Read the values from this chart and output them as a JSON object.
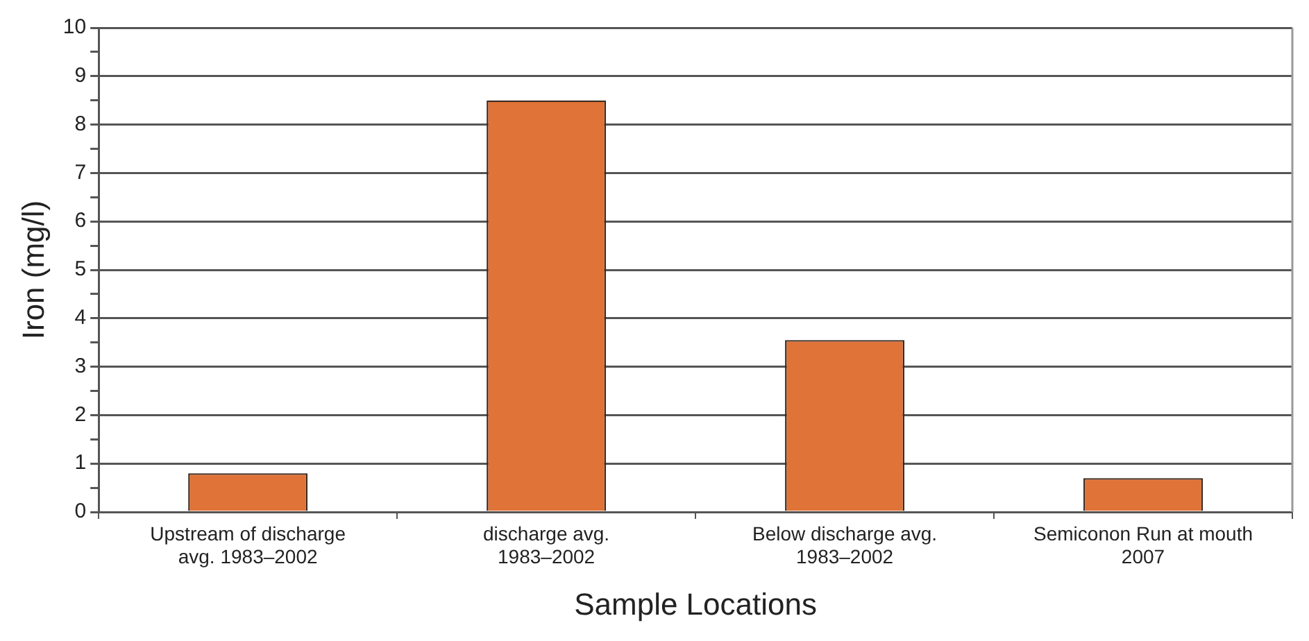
{
  "chart_data": {
    "type": "bar",
    "xlabel": "Sample Locations",
    "ylabel": "Iron (mg/l)",
    "categories": [
      "Upstream of discharge\navg. 1983–2002",
      "discharge avg.\n1983–2002",
      "Below discharge avg.\n1983–2002",
      "Semiconon Run at mouth\n2007"
    ],
    "values": [
      0.8,
      8.5,
      3.55,
      0.7
    ],
    "color": "#e07338",
    "ylim": [
      0,
      10
    ],
    "yticks": [
      0,
      {
        "value": 0.5,
        "label": null
      },
      1,
      {
        "value": 1.5,
        "label": null
      },
      2,
      {
        "value": 2.5,
        "label": null
      },
      3,
      {
        "value": 3.5,
        "label": null
      },
      4,
      {
        "value": 4.5,
        "label": null
      },
      5,
      {
        "value": 5.5,
        "label": null
      },
      6,
      {
        "value": 6.5,
        "label": null
      },
      7,
      {
        "value": 7.5,
        "label": null
      },
      8,
      {
        "value": 8.5,
        "label": null
      },
      9,
      {
        "value": 9.5,
        "label": null
      },
      10
    ],
    "grid": "y",
    "legend": false
  }
}
